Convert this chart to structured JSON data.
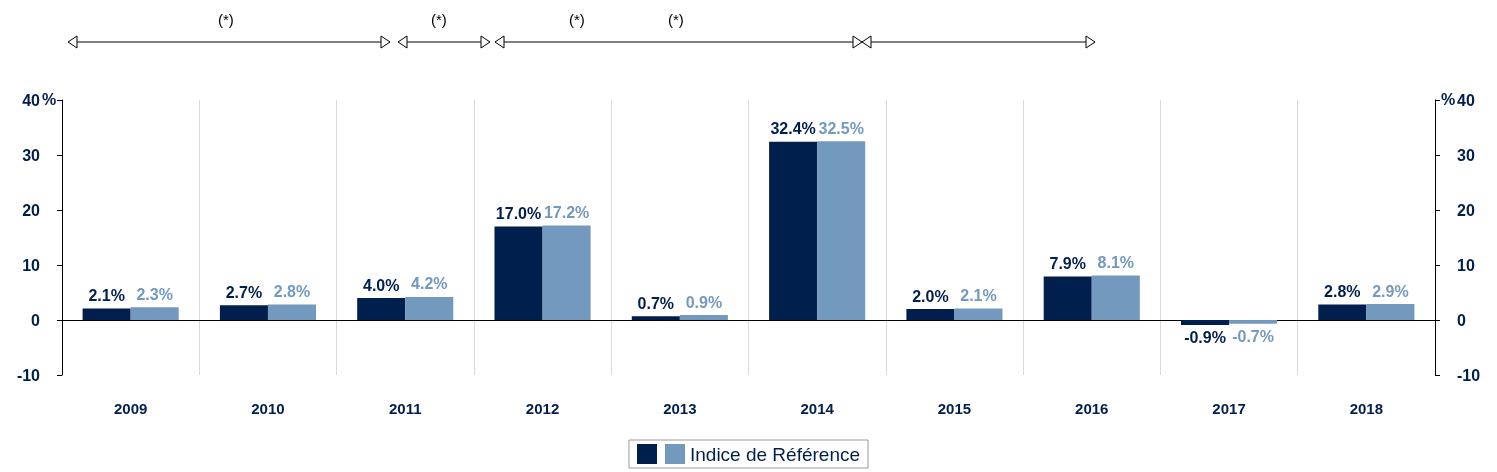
{
  "chart_data": {
    "type": "bar",
    "ylabel": "%",
    "y2label": "%",
    "categories": [
      "2009",
      "2010",
      "2011",
      "2012",
      "2013",
      "2014",
      "2015",
      "2016",
      "2017",
      "2018"
    ],
    "series": [
      {
        "color": "#001f4d",
        "values": [
          2.1,
          2.7,
          4.0,
          17.0,
          0.7,
          32.4,
          2.0,
          7.9,
          -0.9,
          2.8
        ],
        "value_labels": [
          "2.1%",
          "2.7%",
          "4.0%",
          "17.0%",
          "0.7%",
          "32.4%",
          "2.0%",
          "7.9%",
          "-0.9%",
          "2.8%"
        ]
      },
      {
        "name": "Indice de Référence",
        "color": "#7399bf",
        "values": [
          2.3,
          2.8,
          4.2,
          17.2,
          0.9,
          32.5,
          2.1,
          8.1,
          -0.7,
          2.9
        ],
        "value_labels": [
          "2.3%",
          "2.8%",
          "4.2%",
          "17.2%",
          "0.9%",
          "32.5%",
          "2.1%",
          "8.1%",
          "-0.7%",
          "2.9%"
        ]
      }
    ],
    "ylim": [
      -10,
      40
    ],
    "yticks": [
      -10,
      0,
      10,
      20,
      30,
      40
    ],
    "y2lim": [
      -10,
      40
    ],
    "y2ticks": [
      -10,
      0,
      10,
      20,
      30,
      40
    ],
    "grid": "x",
    "legend": "bottom",
    "annotations": [
      "(*)",
      "(*)",
      "(*)",
      "(*)"
    ]
  }
}
